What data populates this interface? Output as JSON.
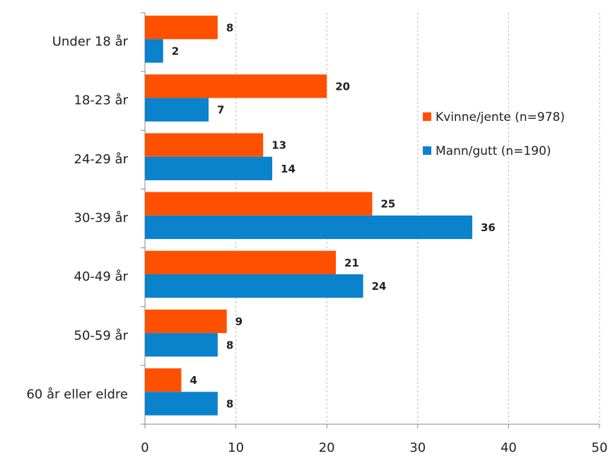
{
  "chart_data": {
    "type": "barh",
    "categories": [
      "Under 18 år",
      "18-23 år",
      "24-29 år",
      "30-39 år",
      "40-49 år",
      "50-59 år",
      "60 år eller eldre"
    ],
    "series": [
      {
        "name": "Kvinne/jente (n=978)",
        "color": "#ff5000",
        "values": [
          8,
          20,
          13,
          25,
          21,
          9,
          4
        ]
      },
      {
        "name": "Mann/gutt (n=190)",
        "color": "#0a82cc",
        "values": [
          2,
          7,
          14,
          36,
          24,
          8,
          8
        ]
      }
    ],
    "xlim": [
      0,
      50
    ],
    "xticks": [
      0,
      10,
      20,
      30,
      40,
      50
    ],
    "grid": true,
    "legend_position": "right"
  }
}
